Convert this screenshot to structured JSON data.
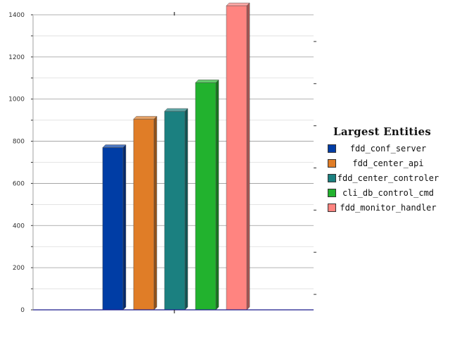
{
  "chart_data": {
    "type": "bar",
    "legend_title": "Largest Entities",
    "legend_position": "right",
    "grid": true,
    "ylim": [
      0,
      1400
    ],
    "y_ticks": [
      0,
      200,
      400,
      600,
      800,
      1000,
      1200,
      1400
    ],
    "y_tick_labels": [
      "0",
      "200",
      "400",
      "600",
      "800",
      "1000",
      "1200",
      "1400"
    ],
    "series": [
      {
        "name": "fdd_conf_server",
        "value": 770,
        "color": "#003da5"
      },
      {
        "name": "fdd_center_api",
        "value": 905,
        "color": "#e07d27"
      },
      {
        "name": "fdd_center_controler",
        "value": 942,
        "color": "#1b8080"
      },
      {
        "name": "cli_db_control_cmd",
        "value": 1078,
        "color": "#22b22e"
      },
      {
        "name": "fdd_monitor_handler",
        "value": 1443,
        "color": "#ff8480"
      }
    ]
  }
}
